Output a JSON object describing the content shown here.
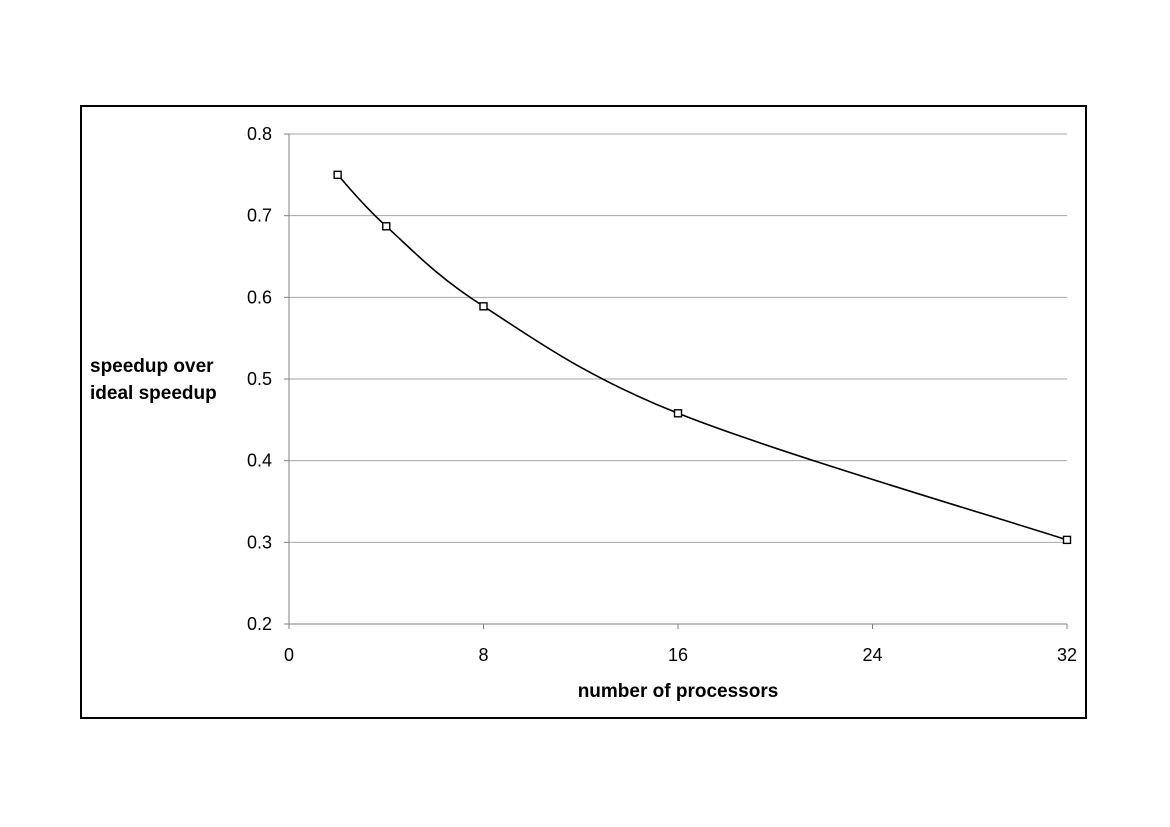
{
  "chart_data": {
    "type": "line",
    "title": "",
    "xlabel": "number of processors",
    "ylabel_lines": [
      "speedup over",
      "ideal speedup"
    ],
    "xlim": [
      0,
      32
    ],
    "ylim": [
      0.2,
      0.8
    ],
    "xticks": [
      0,
      8,
      16,
      24,
      32
    ],
    "yticks": [
      0.2,
      0.3,
      0.4,
      0.5,
      0.6,
      0.7,
      0.8
    ],
    "xtick_labels": [
      "0",
      "8",
      "16",
      "24",
      "32"
    ],
    "ytick_labels": [
      "0.2",
      "0.3",
      "0.4",
      "0.5",
      "0.6",
      "0.7",
      "0.8"
    ],
    "grid": "horizontal",
    "legend": "none",
    "series": [
      {
        "x": [
          2,
          4,
          8,
          16,
          32
        ],
        "y": [
          0.75,
          0.687,
          0.589,
          0.458,
          0.303
        ],
        "marker": "square",
        "smooth": true,
        "color": "#000000"
      }
    ],
    "colors": {
      "line": "#000000",
      "grid": "#a6a6a6",
      "axis": "#808080",
      "frame": "#000000"
    }
  }
}
